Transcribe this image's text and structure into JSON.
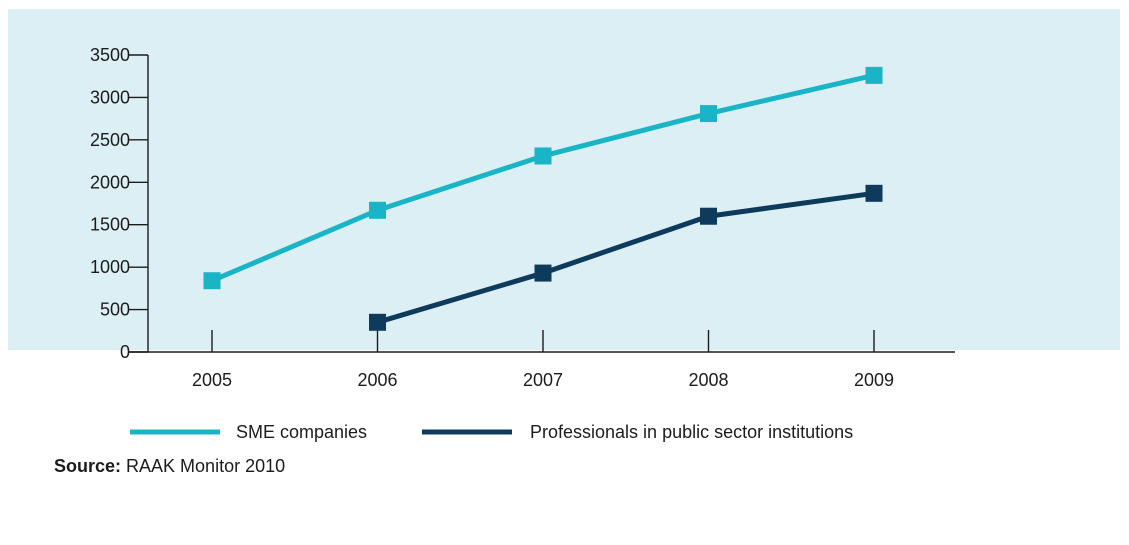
{
  "chart_data": {
    "type": "line",
    "x": [
      "2005",
      "2006",
      "2007",
      "2008",
      "2009"
    ],
    "series": [
      {
        "name": "SME companies",
        "color": "#19b5c6",
        "values": [
          840,
          1670,
          2310,
          2810,
          3260
        ]
      },
      {
        "name": "Professionals in public sector institutions",
        "color": "#0e3a5c",
        "values": [
          null,
          350,
          930,
          1600,
          1870
        ]
      }
    ],
    "yticks": [
      "0",
      "500",
      "1000",
      "1500",
      "2000",
      "2500",
      "3000",
      "3500"
    ],
    "ylim": [
      0,
      3500
    ],
    "grid": false,
    "legend": "bottom",
    "marker": "square"
  },
  "source": {
    "label": "Source:",
    "text": " RAAK Monitor 2010"
  },
  "colors": {
    "background": "#dbeff5",
    "axis": "#1c1c1c"
  }
}
